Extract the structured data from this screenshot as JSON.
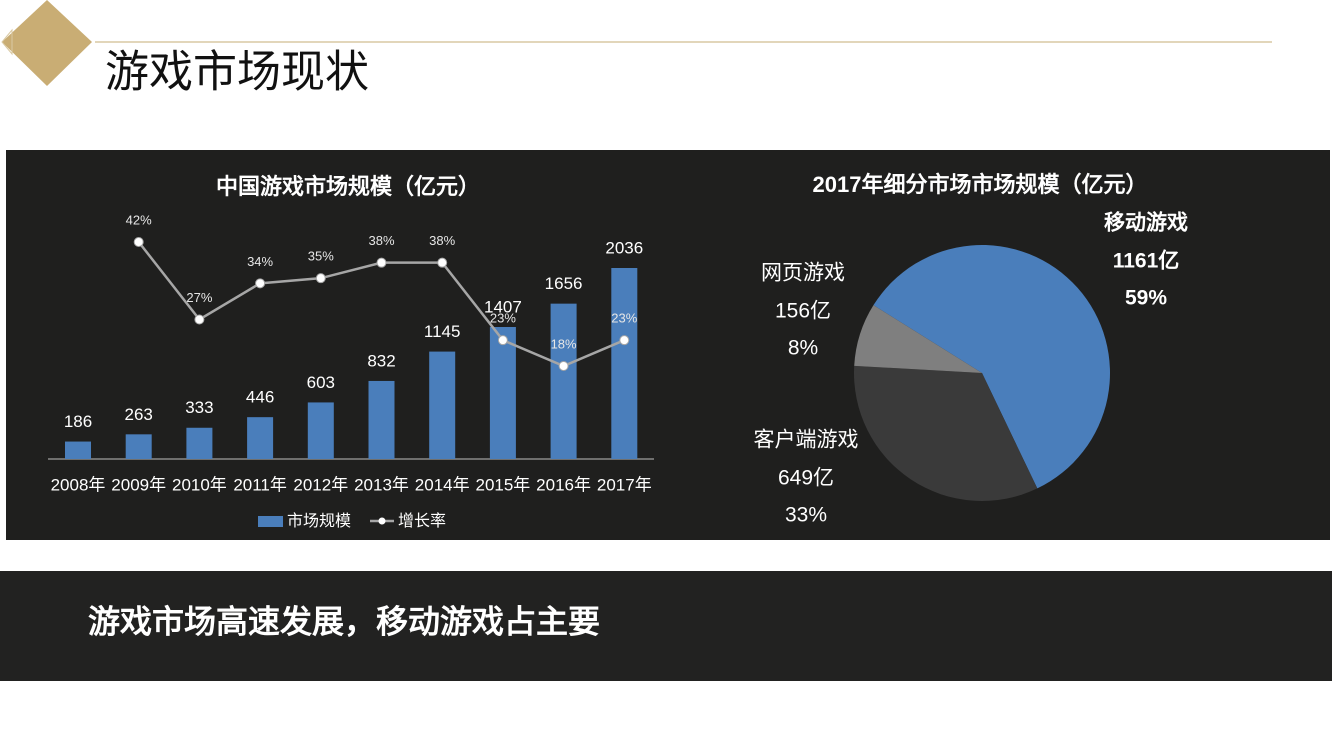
{
  "header": {
    "title": "游戏市场现状"
  },
  "chart_data": [
    {
      "type": "bar",
      "title": "中国游戏市场规模（亿元）",
      "categories": [
        "2008年",
        "2009年",
        "2010年",
        "2011年",
        "2012年",
        "2013年",
        "2014年",
        "2015年",
        "2016年",
        "2017年"
      ],
      "series": [
        {
          "name": "市场规模",
          "color": "#4a7ebb",
          "values": [
            186,
            263,
            333,
            446,
            603,
            832,
            1145,
            1407,
            1656,
            2036
          ]
        },
        {
          "name": "增长率",
          "color": "#a6a6a6",
          "type": "line",
          "axis": "y2",
          "values": [
            null,
            42,
            27,
            34,
            35,
            38,
            38,
            23,
            18,
            23
          ],
          "value_labels": [
            null,
            "42%",
            "27%",
            "34%",
            "35%",
            "38%",
            "38%",
            "23%",
            "18%",
            "23%"
          ]
        }
      ]
    },
    {
      "type": "pie",
      "title": "2017年细分市场市场规模（亿元）",
      "categories": [
        "移动游戏",
        "客户端游戏",
        "网页游戏"
      ],
      "colors": [
        "#4a7ebb",
        "#3a3a3a",
        "#7f7f7f"
      ],
      "values": [
        59,
        33,
        8
      ],
      "value_labels": [
        "59%",
        "33%",
        "8%"
      ],
      "amounts": [
        1161,
        649,
        156
      ],
      "amount_labels": [
        "1161亿",
        "649亿",
        "156亿"
      ]
    }
  ],
  "banner": {
    "text": "游戏市场高速发展，移动游戏占主要"
  }
}
